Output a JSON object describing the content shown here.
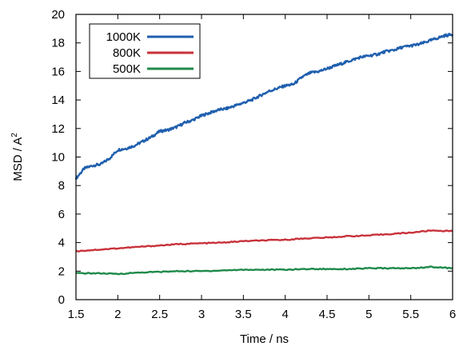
{
  "chart_data": {
    "type": "line",
    "title": "",
    "xlabel": "Time / ns",
    "ylabel": "MSD / A",
    "ylabel_superscript": "2",
    "xlim": [
      1.5,
      6
    ],
    "ylim": [
      0,
      20
    ],
    "xticks": [
      1.5,
      2,
      2.5,
      3,
      3.5,
      4,
      4.5,
      5,
      5.5,
      6
    ],
    "xtick_labels": [
      "1.5",
      "2",
      "2.5",
      "3",
      "3.5",
      "4",
      "4.5",
      "5",
      "5.5",
      "6"
    ],
    "yticks": [
      0,
      2,
      4,
      6,
      8,
      10,
      12,
      14,
      16,
      18,
      20
    ],
    "ytick_labels": [
      "0",
      "2",
      "4",
      "6",
      "8",
      "10",
      "12",
      "14",
      "16",
      "18",
      "20"
    ],
    "grid": false,
    "legend_position": "top-left",
    "series": [
      {
        "name": "1000K",
        "color": "#1f5fae",
        "x": [
          1.5,
          1.6,
          1.7,
          1.8,
          1.9,
          2.0,
          2.1,
          2.2,
          2.3,
          2.4,
          2.5,
          2.6,
          2.7,
          2.8,
          2.9,
          3.0,
          3.1,
          3.2,
          3.3,
          3.4,
          3.5,
          3.6,
          3.7,
          3.8,
          3.9,
          4.0,
          4.1,
          4.2,
          4.3,
          4.4,
          4.5,
          4.6,
          4.7,
          4.8,
          4.9,
          5.0,
          5.1,
          5.2,
          5.3,
          5.4,
          5.5,
          5.6,
          5.7,
          5.8,
          5.9,
          6.0
        ],
        "y": [
          8.5,
          9.2,
          9.4,
          9.5,
          9.9,
          10.5,
          10.6,
          10.8,
          11.1,
          11.4,
          11.8,
          11.9,
          12.1,
          12.4,
          12.6,
          12.9,
          13.1,
          13.3,
          13.4,
          13.6,
          13.8,
          14.0,
          14.3,
          14.6,
          14.8,
          15.0,
          15.1,
          15.6,
          15.9,
          16.0,
          16.2,
          16.4,
          16.6,
          16.8,
          17.0,
          17.1,
          17.2,
          17.4,
          17.5,
          17.7,
          17.8,
          17.9,
          18.1,
          18.3,
          18.5,
          18.6
        ]
      },
      {
        "name": "800K",
        "color": "#c8323a",
        "x": [
          1.5,
          1.75,
          2.0,
          2.25,
          2.5,
          2.75,
          3.0,
          3.25,
          3.5,
          3.75,
          4.0,
          4.25,
          4.5,
          4.75,
          5.0,
          5.25,
          5.5,
          5.75,
          6.0
        ],
        "y": [
          3.4,
          3.5,
          3.6,
          3.7,
          3.8,
          3.9,
          3.95,
          4.0,
          4.1,
          4.15,
          4.2,
          4.3,
          4.35,
          4.45,
          4.5,
          4.6,
          4.7,
          4.85,
          4.8
        ]
      },
      {
        "name": "500K",
        "color": "#1f8a4a",
        "x": [
          1.5,
          1.75,
          2.0,
          2.25,
          2.5,
          2.75,
          3.0,
          3.25,
          3.5,
          3.75,
          4.0,
          4.25,
          4.5,
          4.75,
          5.0,
          5.25,
          5.5,
          5.75,
          6.0
        ],
        "y": [
          1.85,
          1.85,
          1.8,
          1.9,
          1.95,
          2.0,
          2.0,
          2.05,
          2.1,
          2.1,
          2.1,
          2.15,
          2.15,
          2.15,
          2.2,
          2.2,
          2.2,
          2.3,
          2.2
        ]
      }
    ]
  }
}
